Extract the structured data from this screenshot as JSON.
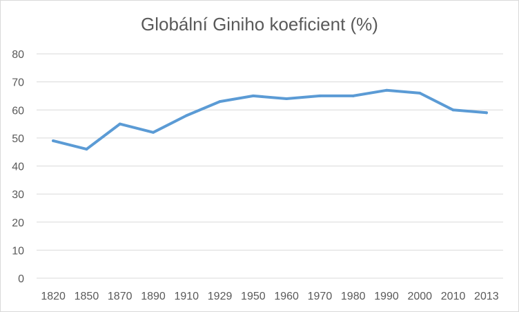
{
  "chart_data": {
    "type": "line",
    "title": "Globální Giniho koeficient (%)",
    "xlabel": "",
    "ylabel": "",
    "categories": [
      "1820",
      "1850",
      "1870",
      "1890",
      "1910",
      "1929",
      "1950",
      "1960",
      "1970",
      "1980",
      "1990",
      "2000",
      "2010",
      "2013"
    ],
    "series": [
      {
        "values": [
          49,
          46,
          55,
          52,
          58,
          63,
          65,
          64,
          65,
          65,
          67,
          66,
          60,
          59
        ]
      }
    ],
    "ylim": [
      0,
      80
    ],
    "yticks": [
      0,
      10,
      20,
      30,
      40,
      50,
      60,
      70,
      80
    ],
    "grid": true,
    "legend": "none",
    "colors": {
      "line": "#5b9bd5",
      "grid": "#d9d9d9",
      "text": "#595959"
    }
  }
}
